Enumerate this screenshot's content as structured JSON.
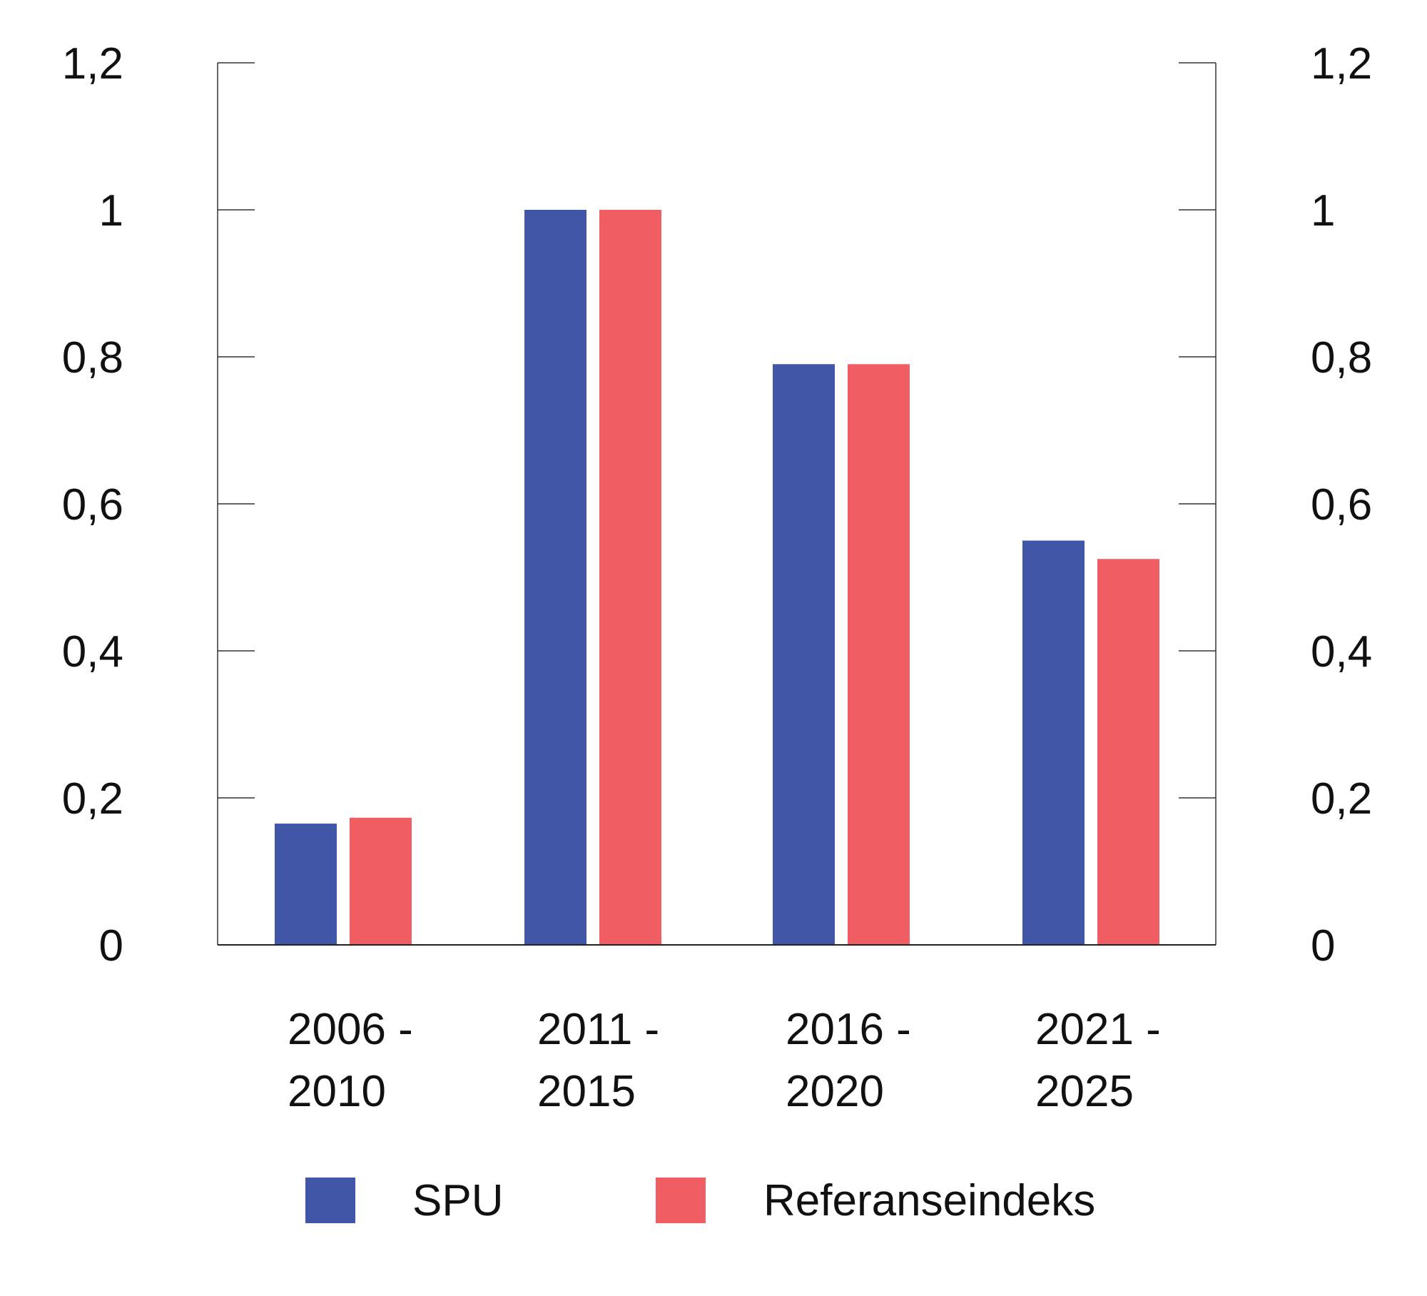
{
  "chart_data": {
    "type": "bar",
    "categories": [
      [
        "2006 -",
        "2010"
      ],
      [
        "2011 -",
        "2015"
      ],
      [
        "2016 -",
        "2020"
      ],
      [
        "2021 -",
        "2025"
      ]
    ],
    "series": [
      {
        "name": "SPU",
        "color": "#4156a6",
        "values": [
          0.165,
          1.0,
          0.79,
          0.55
        ]
      },
      {
        "name": "Referanseindeks",
        "color": "#f05d63",
        "values": [
          0.173,
          1.0,
          0.79,
          0.525
        ]
      }
    ],
    "ylim": [
      0,
      1.2
    ],
    "yticks": [
      0,
      0.2,
      0.4,
      0.6,
      0.8,
      1.0,
      1.2
    ],
    "ytick_labels": [
      "0",
      "0,2",
      "0,4",
      "0,6",
      "0,8",
      "1",
      "1,2"
    ],
    "secondary_axis": true,
    "grid": false,
    "legend": "bottom",
    "title": "",
    "xlabel": "",
    "ylabel": ""
  }
}
